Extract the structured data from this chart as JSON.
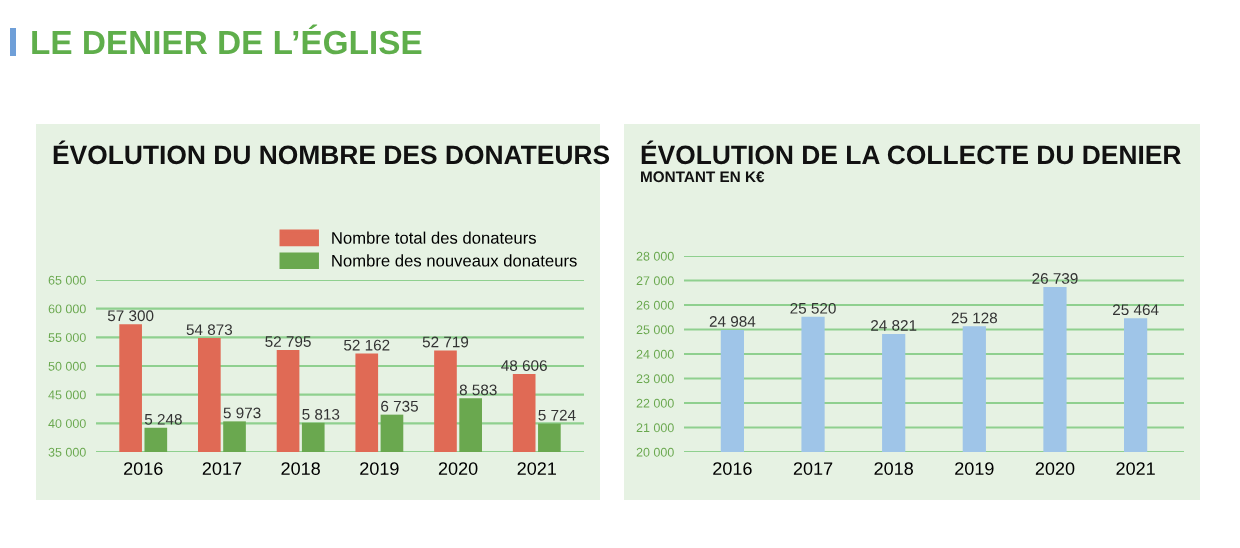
{
  "chart_data": [
    {
      "type": "bar",
      "title": "ÉVOLUTION DU NOMBRE DES DONATEURS",
      "annotations": [
        "LE DENIER DE L’ÉGLISE"
      ],
      "categories": [
        "2016",
        "2017",
        "2018",
        "2019",
        "2020",
        "2021"
      ],
      "series": [
        {
          "name": "Nombre total des donateurs",
          "color": "#e06a55",
          "values": [
            57300,
            54873,
            52795,
            52162,
            52719,
            48606
          ],
          "value_labels": [
            "57 300",
            "54 873",
            "52 795",
            "52 162",
            "52 719",
            "48 606"
          ]
        },
        {
          "name": "Nombre des nouveaux donateurs",
          "color": "#6aa84f",
          "axis": "y2",
          "values": [
            5248,
            5973,
            5813,
            6735,
            8583,
            5724
          ],
          "value_labels": [
            "5 248",
            "5 973",
            "5 813",
            "6 735",
            "8 583",
            "5 724"
          ]
        }
      ],
      "ylim": [
        35000,
        65000
      ],
      "yticks": [
        {
          "value": 35000,
          "label": "35 000"
        },
        {
          "value": 40000,
          "label": "40 000"
        },
        {
          "value": 45000,
          "label": "45 000"
        },
        {
          "value": 50000,
          "label": "50 000"
        },
        {
          "value": 55000,
          "label": "55 000"
        },
        {
          "value": 60000,
          "label": "60 000"
        },
        {
          "value": 65000,
          "label": "65 000"
        }
      ],
      "y2lim": [
        2500,
        22000
      ],
      "grid": "y",
      "legend": "top right"
    },
    {
      "type": "bar",
      "title": "ÉVOLUTION DE LA COLLECTE DU DENIER",
      "subtitle": "MONTANT EN K€",
      "categories": [
        "2016",
        "2017",
        "2018",
        "2019",
        "2020",
        "2021"
      ],
      "series": [
        {
          "color": "#9fc5e8",
          "values": [
            24984,
            25520,
            24821,
            25128,
            26739,
            25464
          ],
          "value_labels": [
            "24 984",
            "25 520",
            "24 821",
            "25 128",
            "26 739",
            "25 464"
          ]
        }
      ],
      "ylim": [
        20000,
        28000
      ],
      "yticks": [
        {
          "value": 20000,
          "label": "20 000"
        },
        {
          "value": 21000,
          "label": "21 000"
        },
        {
          "value": 22000,
          "label": "22 000"
        },
        {
          "value": 23000,
          "label": "23 000"
        },
        {
          "value": 24000,
          "label": "24 000"
        },
        {
          "value": 25000,
          "label": "25 000"
        },
        {
          "value": 26000,
          "label": "26 000"
        },
        {
          "value": 27000,
          "label": "27 000"
        },
        {
          "value": 28000,
          "label": "28 000"
        }
      ],
      "grid": "y"
    }
  ]
}
